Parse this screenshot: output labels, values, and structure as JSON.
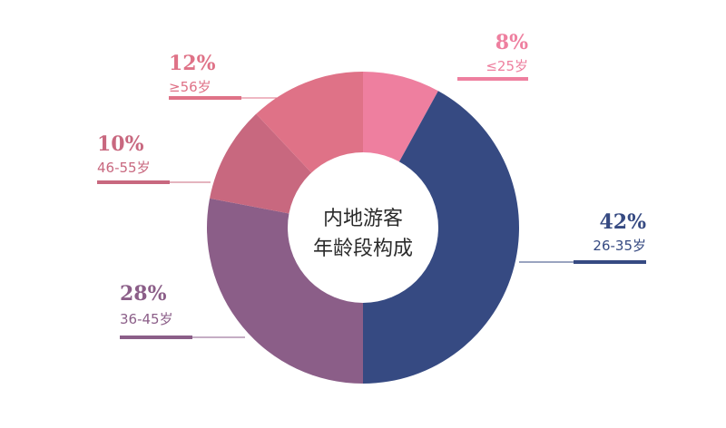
{
  "chart_data": {
    "type": "pie",
    "title": "内地游客年龄段构成",
    "title_lines": [
      "内地游客",
      "年龄段构成"
    ],
    "slices": [
      {
        "label": "≤25岁",
        "value": 8,
        "value_label": "8%",
        "color": "#ee7f9f"
      },
      {
        "label": "26-35岁",
        "value": 42,
        "value_label": "42%",
        "color": "#364a82"
      },
      {
        "label": "36-45岁",
        "value": 28,
        "value_label": "28%",
        "color": "#8b5e88"
      },
      {
        "label": "46-55岁",
        "value": 10,
        "value_label": "10%",
        "color": "#c8687f"
      },
      {
        "label": "≥56岁",
        "value": 12,
        "value_label": "12%",
        "color": "#df7287"
      }
    ]
  }
}
